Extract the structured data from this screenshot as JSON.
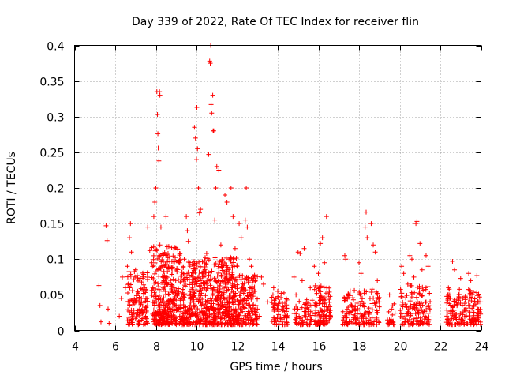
{
  "chart_data": {
    "type": "scatter",
    "title": "Day 339 of 2022, Rate Of TEC Index for receiver flin",
    "xlabel": "GPS time / hours",
    "ylabel": "ROTI / TECUs",
    "xlim": [
      4,
      24
    ],
    "ylim": [
      0,
      0.4
    ],
    "grid": true,
    "marker": "plus",
    "color": "#ff0000",
    "x_ticks": [
      4,
      6,
      8,
      10,
      12,
      14,
      16,
      18,
      20,
      22,
      24
    ],
    "x_tick_labels": [
      "4",
      "6",
      "8",
      "10",
      "12",
      "14",
      "16",
      "18",
      "20",
      "22",
      "24"
    ],
    "y_ticks": [
      0,
      0.05,
      0.1,
      0.15,
      0.2,
      0.25,
      0.3,
      0.35,
      0.4
    ],
    "y_tick_labels": [
      "0",
      "0.05",
      "0.1",
      "0.15",
      "0.2",
      "0.25",
      "0.3",
      "0.35",
      "0.4"
    ],
    "series": [
      {
        "name": "ROTI",
        "points": [
          [
            5.2,
            0.063
          ],
          [
            5.25,
            0.035
          ],
          [
            5.3,
            0.012
          ],
          [
            5.55,
            0.147
          ],
          [
            5.6,
            0.126
          ],
          [
            5.65,
            0.03
          ],
          [
            5.7,
            0.01
          ],
          [
            6.2,
            0.02
          ],
          [
            6.3,
            0.045
          ],
          [
            6.35,
            0.075
          ],
          [
            6.5,
            0.06
          ],
          [
            6.6,
            0.09
          ],
          [
            6.7,
            0.13
          ],
          [
            6.75,
            0.15
          ],
          [
            6.8,
            0.11
          ],
          [
            6.9,
            0.04
          ],
          [
            7.0,
            0.085
          ],
          [
            7.1,
            0.055
          ],
          [
            7.2,
            0.03
          ],
          [
            7.3,
            0.068
          ],
          [
            7.4,
            0.05
          ],
          [
            7.5,
            0.02
          ],
          [
            7.6,
            0.145
          ],
          [
            7.7,
            0.112
          ],
          [
            7.8,
            0.095
          ],
          [
            7.85,
            0.06
          ],
          [
            7.9,
            0.16
          ],
          [
            7.95,
            0.18
          ],
          [
            8.0,
            0.2
          ],
          [
            8.05,
            0.335
          ],
          [
            8.08,
            0.303
          ],
          [
            8.1,
            0.276
          ],
          [
            8.12,
            0.256
          ],
          [
            8.15,
            0.238
          ],
          [
            8.18,
            0.335
          ],
          [
            8.2,
            0.33
          ],
          [
            8.2,
            0.12
          ],
          [
            8.25,
            0.145
          ],
          [
            8.3,
            0.09
          ],
          [
            8.35,
            0.055
          ],
          [
            8.4,
            0.07
          ],
          [
            8.5,
            0.16
          ],
          [
            8.6,
            0.108
          ],
          [
            8.7,
            0.04
          ],
          [
            8.8,
            0.082
          ],
          [
            8.9,
            0.06
          ],
          [
            9.0,
            0.03
          ],
          [
            9.1,
            0.095
          ],
          [
            9.2,
            0.068
          ],
          [
            9.3,
            0.045
          ],
          [
            9.4,
            0.1
          ],
          [
            9.5,
            0.16
          ],
          [
            9.55,
            0.14
          ],
          [
            9.6,
            0.125
          ],
          [
            9.7,
            0.05
          ],
          [
            9.8,
            0.075
          ],
          [
            9.9,
            0.285
          ],
          [
            9.95,
            0.27
          ],
          [
            10.0,
            0.24
          ],
          [
            10.02,
            0.313
          ],
          [
            10.05,
            0.255
          ],
          [
            10.1,
            0.2
          ],
          [
            10.15,
            0.165
          ],
          [
            10.2,
            0.17
          ],
          [
            10.3,
            0.08
          ],
          [
            10.4,
            0.06
          ],
          [
            10.5,
            0.108
          ],
          [
            10.6,
            0.247
          ],
          [
            10.65,
            0.378
          ],
          [
            10.68,
            0.375
          ],
          [
            10.7,
            0.4
          ],
          [
            10.72,
            0.317
          ],
          [
            10.75,
            0.305
          ],
          [
            10.8,
            0.33
          ],
          [
            10.82,
            0.28
          ],
          [
            10.85,
            0.28
          ],
          [
            10.9,
            0.155
          ],
          [
            10.95,
            0.2
          ],
          [
            11.0,
            0.23
          ],
          [
            11.1,
            0.225
          ],
          [
            11.2,
            0.12
          ],
          [
            11.3,
            0.07
          ],
          [
            11.4,
            0.19
          ],
          [
            11.5,
            0.18
          ],
          [
            11.6,
            0.1
          ],
          [
            11.7,
            0.2
          ],
          [
            11.8,
            0.16
          ],
          [
            11.9,
            0.115
          ],
          [
            12.0,
            0.09
          ],
          [
            12.1,
            0.15
          ],
          [
            12.2,
            0.13
          ],
          [
            12.3,
            0.06
          ],
          [
            12.4,
            0.155
          ],
          [
            12.45,
            0.2
          ],
          [
            12.5,
            0.145
          ],
          [
            12.6,
            0.1
          ],
          [
            12.7,
            0.09
          ],
          [
            12.8,
            0.05
          ],
          [
            12.9,
            0.07
          ],
          [
            13.0,
            0.03
          ],
          [
            13.1,
            0.02
          ],
          [
            13.2,
            0.075
          ],
          [
            13.3,
            0.065
          ],
          [
            13.5,
            0.04
          ],
          [
            13.8,
            0.06
          ],
          [
            14.0,
            0.055
          ],
          [
            14.1,
            0.04
          ],
          [
            14.2,
            0.03
          ],
          [
            14.4,
            0.02
          ],
          [
            14.8,
            0.075
          ],
          [
            14.9,
            0.05
          ],
          [
            15.0,
            0.11
          ],
          [
            15.1,
            0.108
          ],
          [
            15.2,
            0.07
          ],
          [
            15.3,
            0.115
          ],
          [
            15.4,
            0.035
          ],
          [
            15.6,
            0.06
          ],
          [
            15.8,
            0.09
          ],
          [
            16.0,
            0.08
          ],
          [
            16.1,
            0.122
          ],
          [
            16.2,
            0.13
          ],
          [
            16.3,
            0.095
          ],
          [
            16.4,
            0.16
          ],
          [
            16.5,
            0.05
          ],
          [
            16.6,
            0.02
          ],
          [
            17.3,
            0.105
          ],
          [
            17.35,
            0.1
          ],
          [
            17.5,
            0.05
          ],
          [
            17.7,
            0.035
          ],
          [
            18.0,
            0.095
          ],
          [
            18.1,
            0.08
          ],
          [
            18.3,
            0.145
          ],
          [
            18.35,
            0.166
          ],
          [
            18.4,
            0.13
          ],
          [
            18.6,
            0.15
          ],
          [
            18.7,
            0.12
          ],
          [
            18.8,
            0.11
          ],
          [
            18.9,
            0.07
          ],
          [
            19.5,
            0.05
          ],
          [
            19.6,
            0.03
          ],
          [
            20.1,
            0.09
          ],
          [
            20.2,
            0.08
          ],
          [
            20.4,
            0.065
          ],
          [
            20.5,
            0.105
          ],
          [
            20.6,
            0.1
          ],
          [
            20.7,
            0.075
          ],
          [
            20.8,
            0.15
          ],
          [
            20.85,
            0.153
          ],
          [
            21.0,
            0.122
          ],
          [
            21.1,
            0.085
          ],
          [
            21.3,
            0.105
          ],
          [
            21.4,
            0.09
          ],
          [
            22.4,
            0.06
          ],
          [
            22.5,
            0.045
          ],
          [
            22.6,
            0.097
          ],
          [
            22.7,
            0.085
          ],
          [
            22.9,
            0.05
          ],
          [
            23.0,
            0.073
          ],
          [
            23.1,
            0.045
          ],
          [
            23.4,
            0.08
          ],
          [
            23.5,
            0.07
          ],
          [
            23.8,
            0.077
          ],
          [
            23.9,
            0.04
          ]
        ],
        "dense_clusters": [
          {
            "x": [
              6.6,
              7.6
            ],
            "y": [
              0.0,
              0.075
            ],
            "n": 130
          },
          {
            "x": [
              7.8,
              9.2
            ],
            "y": [
              0.0,
              0.11
            ],
            "n": 320
          },
          {
            "x": [
              9.2,
              10.2
            ],
            "y": [
              0.0,
              0.09
            ],
            "n": 200
          },
          {
            "x": [
              10.2,
              12.0
            ],
            "y": [
              0.0,
              0.095
            ],
            "n": 420
          },
          {
            "x": [
              12.0,
              13.0
            ],
            "y": [
              0.0,
              0.07
            ],
            "n": 160
          },
          {
            "x": [
              13.7,
              14.5
            ],
            "y": [
              0.0,
              0.045
            ],
            "n": 70
          },
          {
            "x": [
              14.8,
              15.7
            ],
            "y": [
              0.0,
              0.04
            ],
            "n": 60
          },
          {
            "x": [
              15.8,
              16.6
            ],
            "y": [
              0.0,
              0.055
            ],
            "n": 110
          },
          {
            "x": [
              17.2,
              19.0
            ],
            "y": [
              0.0,
              0.05
            ],
            "n": 150
          },
          {
            "x": [
              19.4,
              19.8
            ],
            "y": [
              0.0,
              0.03
            ],
            "n": 20
          },
          {
            "x": [
              20.0,
              21.5
            ],
            "y": [
              0.0,
              0.055
            ],
            "n": 130
          },
          {
            "x": [
              22.3,
              24.0
            ],
            "y": [
              0.0,
              0.05
            ],
            "n": 160
          }
        ]
      }
    ]
  }
}
